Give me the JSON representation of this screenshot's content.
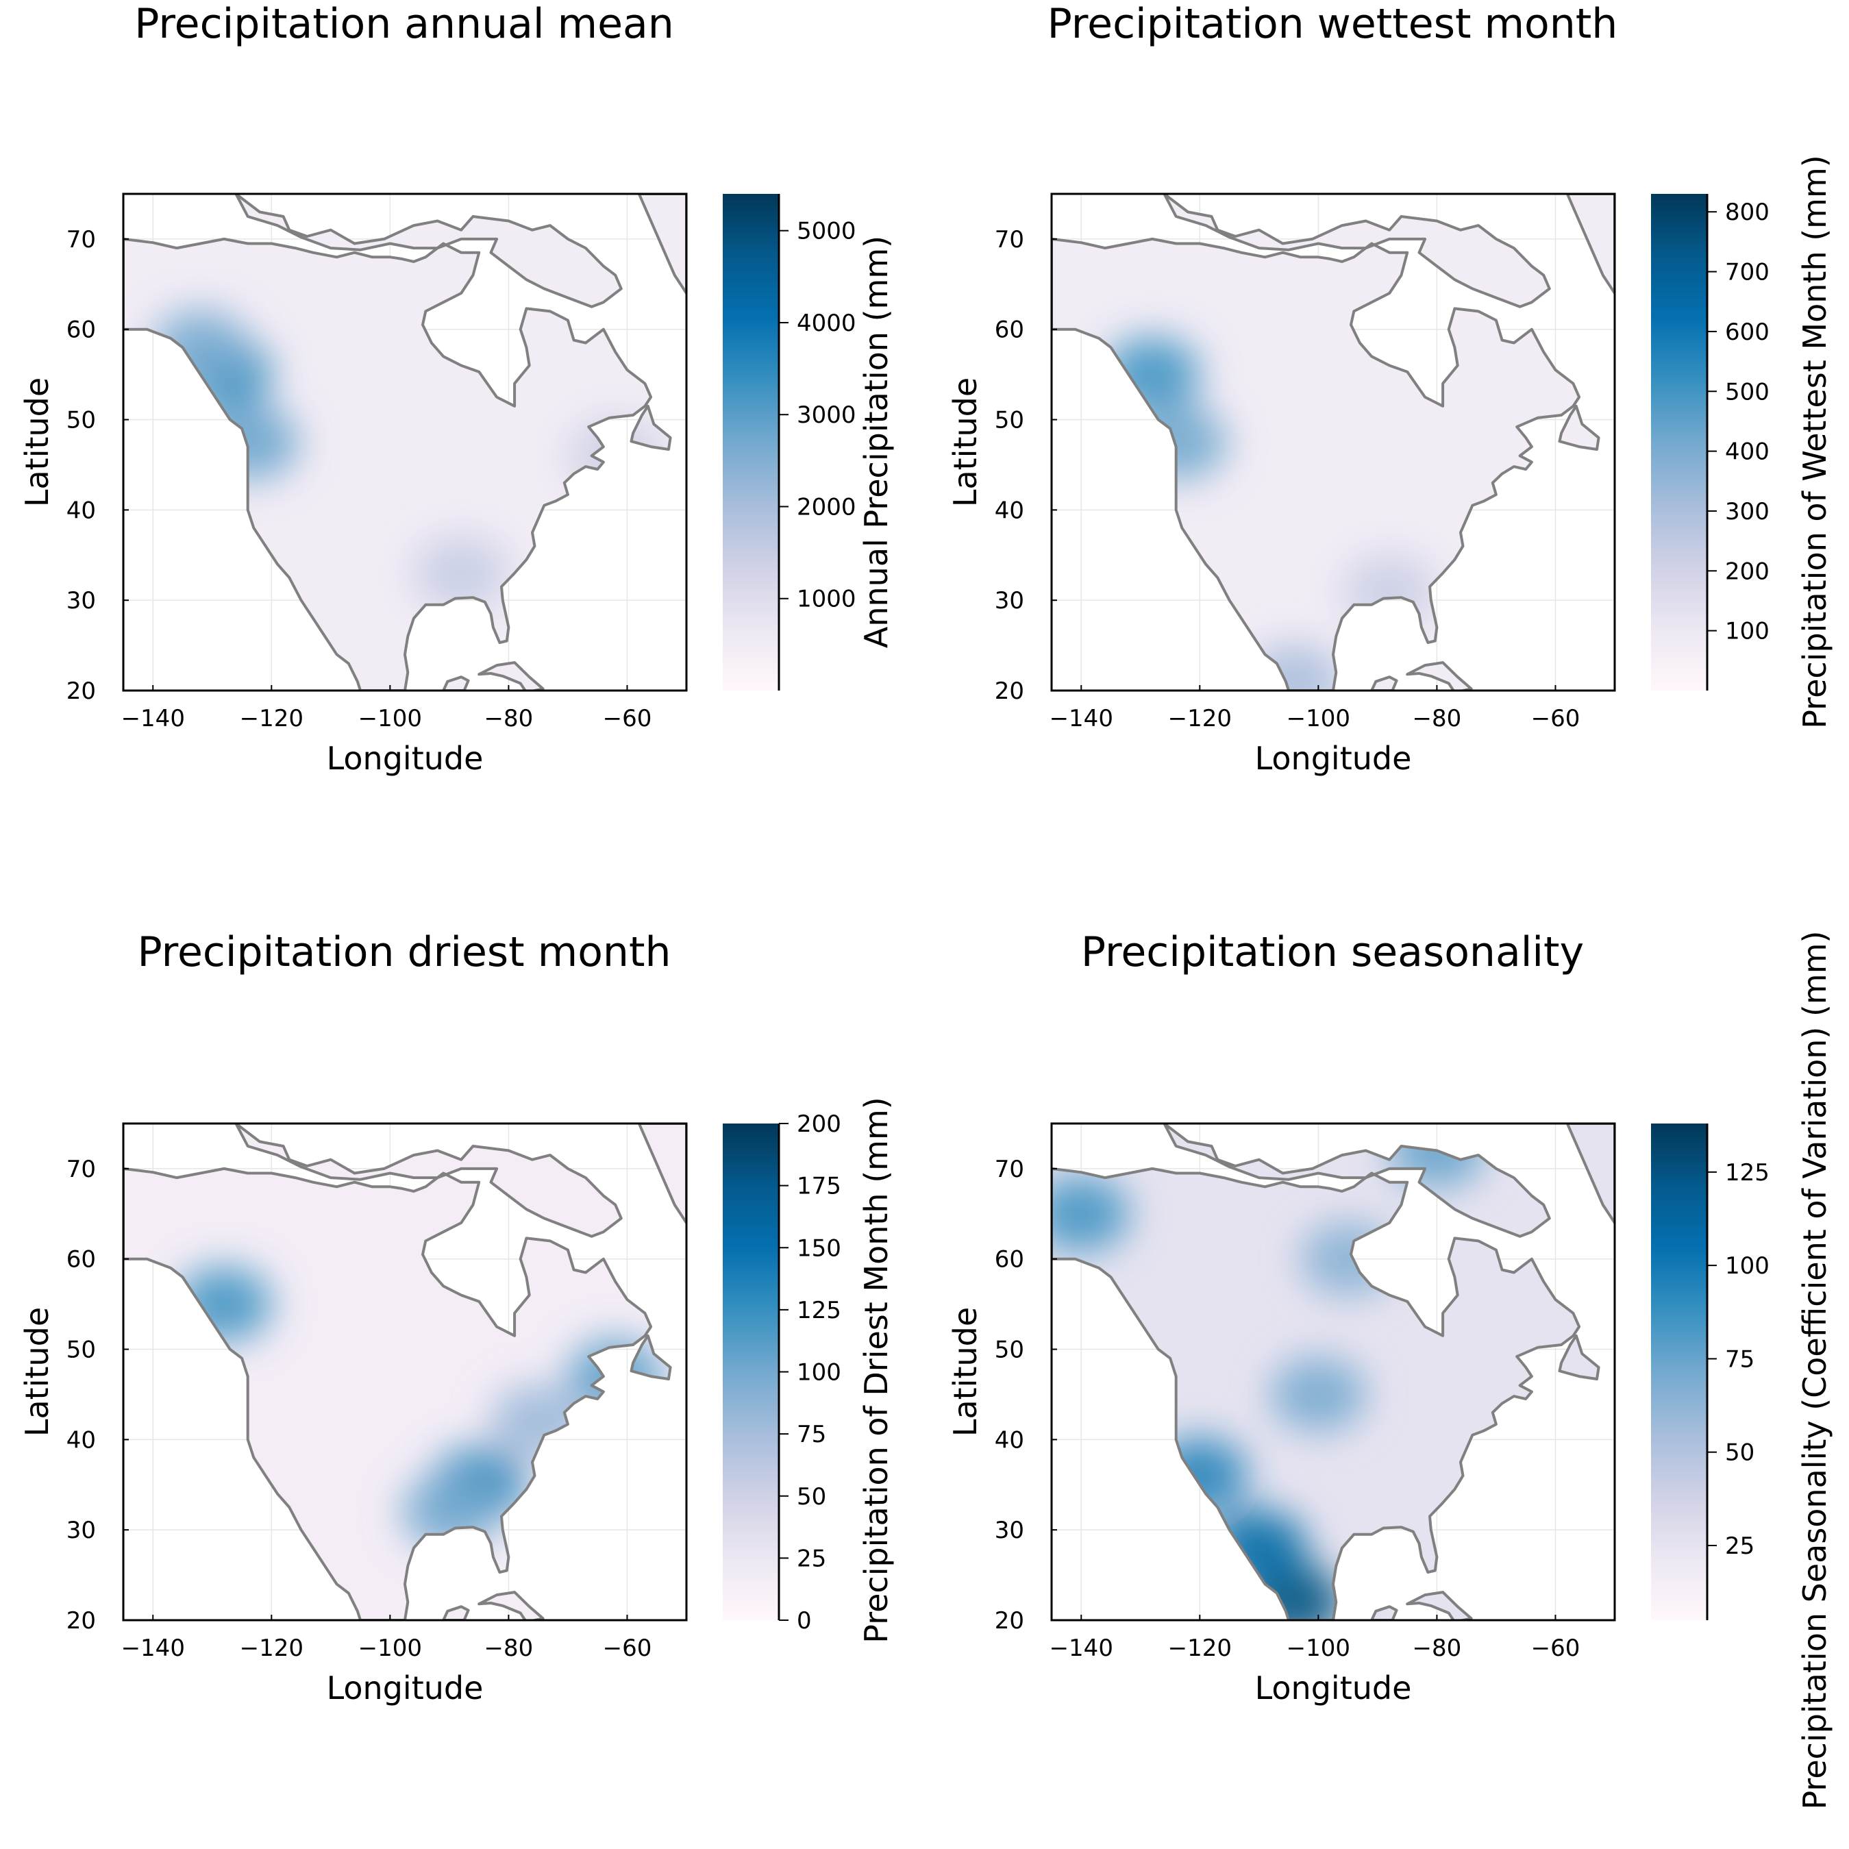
{
  "chart_data": [
    {
      "type": "heatmap",
      "title": "Precipitation annual mean",
      "xlabel": "Longitude",
      "ylabel": "Latitude",
      "xlim": [
        -145,
        -50
      ],
      "ylim": [
        20,
        75
      ],
      "xticks": [
        -140,
        -120,
        -100,
        -80,
        -60
      ],
      "xtick_labels": [
        "−140",
        "−120",
        "−100",
        "−80",
        "−60"
      ],
      "yticks": [
        20,
        30,
        40,
        50,
        60,
        70
      ],
      "ytick_labels": [
        "20",
        "30",
        "40",
        "50",
        "60",
        "70"
      ],
      "colorbar": {
        "label": "Annual Precipitation (mm)",
        "range": [
          0,
          5400
        ],
        "ticks": [
          1000,
          2000,
          3000,
          4000,
          5000
        ],
        "tick_labels": [
          "1000",
          "2000",
          "3000",
          "4000",
          "5000"
        ]
      },
      "hotspots": [
        {
          "lon": -128,
          "lat": 55,
          "value": 3400
        },
        {
          "lon": -123.5,
          "lat": 47.5,
          "value": 2800
        },
        {
          "lon": -132,
          "lat": 58,
          "value": 2600
        },
        {
          "lon": -88,
          "lat": 33,
          "value": 1500
        },
        {
          "lon": -62,
          "lat": 46,
          "value": 1400
        }
      ],
      "base_value": 450
    },
    {
      "type": "heatmap",
      "title": "Precipitation wettest month",
      "xlabel": "Longitude",
      "ylabel": "Latitude",
      "xlim": [
        -145,
        -50
      ],
      "ylim": [
        20,
        75
      ],
      "xticks": [
        -140,
        -120,
        -100,
        -80,
        -60
      ],
      "xtick_labels": [
        "−140",
        "−120",
        "−100",
        "−80",
        "−60"
      ],
      "yticks": [
        20,
        30,
        40,
        50,
        60,
        70
      ],
      "ytick_labels": [
        "20",
        "30",
        "40",
        "50",
        "60",
        "70"
      ],
      "colorbar": {
        "label": "Precipitation of Wettest Month (mm)",
        "range": [
          0,
          830
        ],
        "ticks": [
          100,
          200,
          300,
          400,
          500,
          600,
          700,
          800
        ],
        "tick_labels": [
          "100",
          "200",
          "300",
          "400",
          "500",
          "600",
          "700",
          "800"
        ]
      },
      "hotspots": [
        {
          "lon": -128,
          "lat": 55,
          "value": 500
        },
        {
          "lon": -123.5,
          "lat": 47.5,
          "value": 420
        },
        {
          "lon": -104,
          "lat": 21,
          "value": 300
        },
        {
          "lon": -88,
          "lat": 31,
          "value": 220
        }
      ],
      "base_value": 70
    },
    {
      "type": "heatmap",
      "title": "Precipitation driest month",
      "xlabel": "Longitude",
      "ylabel": "Latitude",
      "xlim": [
        -145,
        -50
      ],
      "ylim": [
        20,
        75
      ],
      "xticks": [
        -140,
        -120,
        -100,
        -80,
        -60
      ],
      "xtick_labels": [
        "−140",
        "−120",
        "−100",
        "−80",
        "−60"
      ],
      "yticks": [
        20,
        30,
        40,
        50,
        60,
        70
      ],
      "ytick_labels": [
        "20",
        "30",
        "40",
        "50",
        "60",
        "70"
      ],
      "colorbar": {
        "label": "Precipitation of Driest Month (mm)",
        "range": [
          0,
          200
        ],
        "ticks": [
          0,
          25,
          50,
          75,
          100,
          125,
          150,
          175,
          200
        ],
        "tick_labels": [
          "0",
          "25",
          "50",
          "75",
          "100",
          "125",
          "150",
          "175",
          "200"
        ]
      },
      "hotspots": [
        {
          "lon": -128,
          "lat": 55,
          "value": 120
        },
        {
          "lon": -85,
          "lat": 35,
          "value": 130
        },
        {
          "lon": -90,
          "lat": 32,
          "value": 100
        },
        {
          "lon": -62,
          "lat": 47,
          "value": 110
        },
        {
          "lon": -75,
          "lat": 42,
          "value": 80
        }
      ],
      "base_value": 15
    },
    {
      "type": "heatmap",
      "title": "Precipitation seasonality",
      "xlabel": "Longitude",
      "ylabel": "Latitude",
      "xlim": [
        -145,
        -50
      ],
      "ylim": [
        20,
        75
      ],
      "xticks": [
        -140,
        -120,
        -100,
        -80,
        -60
      ],
      "xtick_labels": [
        "−140",
        "−120",
        "−100",
        "−80",
        "−60"
      ],
      "yticks": [
        20,
        30,
        40,
        50,
        60,
        70
      ],
      "ytick_labels": [
        "20",
        "30",
        "40",
        "50",
        "60",
        "70"
      ],
      "colorbar": {
        "label": "Precipitation Seasonality (Coefficient of Variation) (mm)",
        "range": [
          5,
          138
        ],
        "ticks": [
          25,
          50,
          75,
          100,
          125
        ],
        "tick_labels": [
          "25",
          "50",
          "75",
          "100",
          "125"
        ]
      },
      "hotspots": [
        {
          "lon": -104,
          "lat": 22,
          "value": 125
        },
        {
          "lon": -110,
          "lat": 28,
          "value": 110
        },
        {
          "lon": -120,
          "lat": 36,
          "value": 95
        },
        {
          "lon": -100,
          "lat": 45,
          "value": 70
        },
        {
          "lon": -95,
          "lat": 60,
          "value": 65
        },
        {
          "lon": -140,
          "lat": 65,
          "value": 85
        },
        {
          "lon": -80,
          "lat": 72,
          "value": 75
        }
      ],
      "base_value": 25
    }
  ]
}
